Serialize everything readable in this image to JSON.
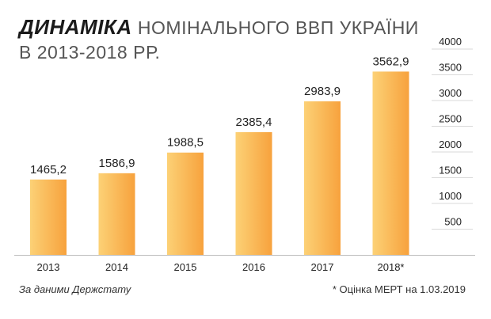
{
  "title": {
    "bold": "ДИНАМІКА",
    "rest": "НОМІНАЛЬНОГО ВВП УКРАЇНИ",
    "line2": "В 2013-2018 РР."
  },
  "source": "За даними Держстату",
  "footnote": "* Оцінка МЕРТ на 1.03.2019",
  "colors": {
    "bar_light": "#fcd176",
    "bar_dark": "#f7a23d",
    "grid": "#d9d9d9",
    "axis": "#bdbdbd",
    "text": "#222222"
  },
  "chart_data": {
    "type": "bar",
    "categories": [
      "2013",
      "2014",
      "2015",
      "2016",
      "2017",
      "2018*"
    ],
    "values": [
      1465.2,
      1586.9,
      1988.5,
      2385.4,
      2983.9,
      3562.9
    ],
    "value_labels": [
      "1465,2",
      "1586,9",
      "1988,5",
      "2385,4",
      "2983,9",
      "3562,9"
    ],
    "ylim": [
      0,
      4000
    ],
    "yticks": [
      500,
      1000,
      1500,
      2000,
      2500,
      3000,
      3500,
      4000
    ],
    "grid": true,
    "xlabel": "",
    "ylabel": ""
  }
}
